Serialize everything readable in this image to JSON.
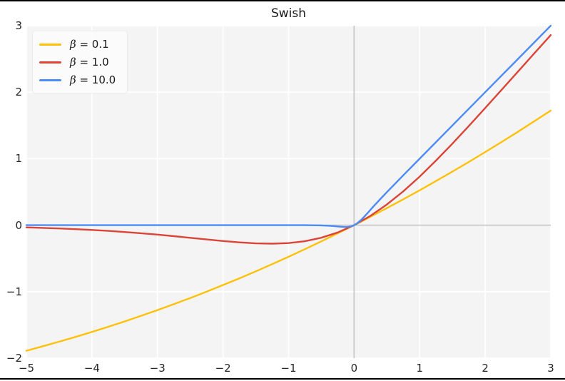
{
  "figure": {
    "background": "#ffffff",
    "rule_color": "#000000"
  },
  "chart_data": {
    "type": "line",
    "title": "Swish",
    "xlabel": "",
    "ylabel": "",
    "xlim": [
      -5,
      3
    ],
    "ylim": [
      -2,
      3
    ],
    "xticks": [
      -5,
      -4,
      -3,
      -2,
      -1,
      0,
      1,
      2,
      3
    ],
    "xtick_labels": [
      "−5",
      "−4",
      "−3",
      "−2",
      "−1",
      "0",
      "1",
      "2",
      "3"
    ],
    "yticks": [
      -2,
      -1,
      0,
      1,
      2,
      3
    ],
    "ytick_labels": [
      "−2",
      "−1",
      "0",
      "1",
      "2",
      "3"
    ],
    "grid": true,
    "grid_color": "#ffffff",
    "plot_bg": "#f4f4f5",
    "zero_line_color": "#c9c9c9",
    "legend_position": "upper left",
    "text_color": "#262626",
    "series": [
      {
        "name": "β = 0.1",
        "color": "#FEC108",
        "points": [
          [
            -5,
            -1.888
          ],
          [
            -4.75,
            -1.821
          ],
          [
            -4.5,
            -1.752
          ],
          [
            -4.25,
            -1.68
          ],
          [
            -4,
            -1.605
          ],
          [
            -3.75,
            -1.528
          ],
          [
            -3.5,
            -1.447
          ],
          [
            -3.25,
            -1.363
          ],
          [
            -3,
            -1.277
          ],
          [
            -2.75,
            -1.187
          ],
          [
            -2.5,
            -1.095
          ],
          [
            -2.25,
            -0.999
          ],
          [
            -2,
            -0.9
          ],
          [
            -1.75,
            -0.799
          ],
          [
            -1.5,
            -0.694
          ],
          [
            -1.25,
            -0.586
          ],
          [
            -1,
            -0.475
          ],
          [
            -0.75,
            -0.361
          ],
          [
            -0.5,
            -0.244
          ],
          [
            -0.25,
            -0.123
          ],
          [
            0,
            0
          ],
          [
            0.25,
            0.127
          ],
          [
            0.5,
            0.256
          ],
          [
            0.75,
            0.389
          ],
          [
            1,
            0.525
          ],
          [
            1.25,
            0.664
          ],
          [
            1.5,
            0.806
          ],
          [
            1.75,
            0.951
          ],
          [
            2,
            1.1
          ],
          [
            2.25,
            1.251
          ],
          [
            2.5,
            1.405
          ],
          [
            2.75,
            1.563
          ],
          [
            3,
            1.723
          ]
        ]
      },
      {
        "name": "β = 1.0",
        "color": "#DB4437",
        "points": [
          [
            -5,
            -0.033
          ],
          [
            -4.75,
            -0.041
          ],
          [
            -4.5,
            -0.049
          ],
          [
            -4.25,
            -0.06
          ],
          [
            -4,
            -0.072
          ],
          [
            -3.75,
            -0.086
          ],
          [
            -3.5,
            -0.103
          ],
          [
            -3.25,
            -0.121
          ],
          [
            -3,
            -0.142
          ],
          [
            -2.75,
            -0.165
          ],
          [
            -2.5,
            -0.19
          ],
          [
            -2.25,
            -0.215
          ],
          [
            -2,
            -0.238
          ],
          [
            -1.75,
            -0.259
          ],
          [
            -1.5,
            -0.274
          ],
          [
            -1.25,
            -0.278
          ],
          [
            -1,
            -0.269
          ],
          [
            -0.75,
            -0.241
          ],
          [
            -0.5,
            -0.189
          ],
          [
            -0.25,
            -0.109
          ],
          [
            0,
            0
          ],
          [
            0.25,
            0.141
          ],
          [
            0.5,
            0.311
          ],
          [
            0.75,
            0.509
          ],
          [
            1,
            0.731
          ],
          [
            1.25,
            0.972
          ],
          [
            1.5,
            1.226
          ],
          [
            1.75,
            1.491
          ],
          [
            2,
            1.762
          ],
          [
            2.25,
            2.035
          ],
          [
            2.5,
            2.31
          ],
          [
            2.75,
            2.585
          ],
          [
            3,
            2.858
          ]
        ]
      },
      {
        "name": "β = 10.0",
        "color": "#4C8BF5",
        "points": [
          [
            -5,
            0
          ],
          [
            -4,
            0
          ],
          [
            -3,
            0
          ],
          [
            -2,
            0
          ],
          [
            -1.5,
            0
          ],
          [
            -1,
            0
          ],
          [
            -0.75,
            0
          ],
          [
            -0.5,
            -0.003
          ],
          [
            -0.4,
            -0.007
          ],
          [
            -0.3,
            -0.014
          ],
          [
            -0.25,
            -0.019
          ],
          [
            -0.2,
            -0.024
          ],
          [
            -0.15,
            -0.027
          ],
          [
            -0.1,
            -0.027
          ],
          [
            -0.05,
            -0.019
          ],
          [
            0,
            0
          ],
          [
            0.05,
            0.031
          ],
          [
            0.1,
            0.073
          ],
          [
            0.15,
            0.123
          ],
          [
            0.2,
            0.176
          ],
          [
            0.25,
            0.231
          ],
          [
            0.3,
            0.286
          ],
          [
            0.4,
            0.393
          ],
          [
            0.5,
            0.497
          ],
          [
            0.75,
            0.75
          ],
          [
            1,
            1
          ],
          [
            1.5,
            1.5
          ],
          [
            2,
            2
          ],
          [
            2.5,
            2.5
          ],
          [
            3,
            3
          ]
        ]
      }
    ]
  }
}
